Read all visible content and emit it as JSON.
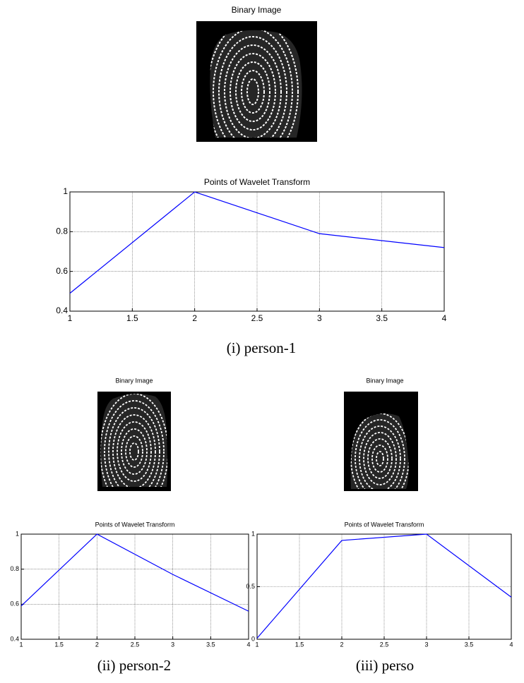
{
  "images": [
    {
      "title": "Binary Image"
    },
    {
      "title": "Binary Image"
    },
    {
      "title": "Binary Image"
    }
  ],
  "captions": [
    "(i)  person-1",
    "(ii) person-2",
    "(iii) perso"
  ],
  "chart_data": [
    {
      "type": "line",
      "title": "Points of Wavelet Transform",
      "x": [
        1,
        2,
        3,
        4
      ],
      "values": [
        0.49,
        1.0,
        0.79,
        0.72
      ],
      "color": "#0000ff",
      "xlim": [
        1,
        4
      ],
      "ylim": [
        0.4,
        1
      ],
      "xticks": [
        1,
        1.5,
        2,
        2.5,
        3,
        3.5,
        4
      ],
      "yticks": [
        0.4,
        0.6,
        0.8,
        1
      ],
      "grid": true
    },
    {
      "type": "line",
      "title": "Points of Wavelet Transform",
      "x": [
        1,
        2,
        3,
        4
      ],
      "values": [
        0.59,
        1.0,
        0.77,
        0.56
      ],
      "color": "#0000ff",
      "xlim": [
        1,
        4
      ],
      "ylim": [
        0.4,
        1
      ],
      "xticks": [
        1,
        1.5,
        2,
        2.5,
        3,
        3.5,
        4
      ],
      "yticks": [
        0.4,
        0.6,
        0.8,
        1
      ],
      "grid": true
    },
    {
      "type": "line",
      "title": "Points of Wavelet Transform",
      "x": [
        1,
        2,
        3,
        4
      ],
      "values": [
        0.01,
        0.94,
        1.0,
        0.4
      ],
      "color": "#0000ff",
      "xlim": [
        1,
        4
      ],
      "ylim": [
        0,
        1
      ],
      "xticks": [
        1,
        1.5,
        2,
        2.5,
        3,
        3.5,
        4
      ],
      "yticks": [
        0,
        0.5,
        1
      ],
      "grid": true
    }
  ]
}
